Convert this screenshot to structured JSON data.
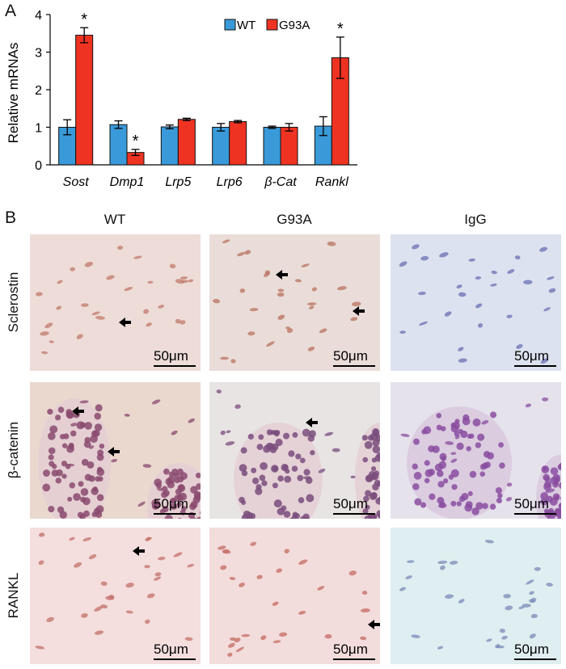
{
  "panel_a": {
    "letter": "A"
  },
  "panel_b": {
    "letter": "B",
    "columns": [
      "WT",
      "G93A",
      "IgG"
    ],
    "rows": [
      "Sclerostin",
      "β-catenin",
      "RANKL"
    ],
    "scale_bar_label": "50μm"
  },
  "colors": {
    "wt": "#3a9ad9",
    "g93a": "#ee3322"
  },
  "chart_data": {
    "type": "bar",
    "categories": [
      "Sost",
      "Dmp1",
      "Lrp5",
      "Lrp6",
      "β-Cat",
      "Rankl"
    ],
    "series": [
      {
        "name": "WT",
        "values": [
          1.0,
          1.07,
          1.01,
          1.0,
          1.0,
          1.03
        ],
        "errors": [
          0.2,
          0.1,
          0.05,
          0.1,
          0.03,
          0.25
        ]
      },
      {
        "name": "G93A",
        "values": [
          3.45,
          0.33,
          1.21,
          1.15,
          1.0,
          2.85
        ],
        "errors": [
          0.2,
          0.08,
          0.03,
          0.03,
          0.1,
          0.55
        ]
      }
    ],
    "significance": [
      "*",
      "*",
      "",
      "",
      "",
      "*"
    ],
    "ylabel": "Relative mRNAs",
    "ylim": [
      0,
      4
    ],
    "yticks": [
      0,
      1,
      2,
      3,
      4
    ],
    "legend": "top-center",
    "grid": false
  }
}
